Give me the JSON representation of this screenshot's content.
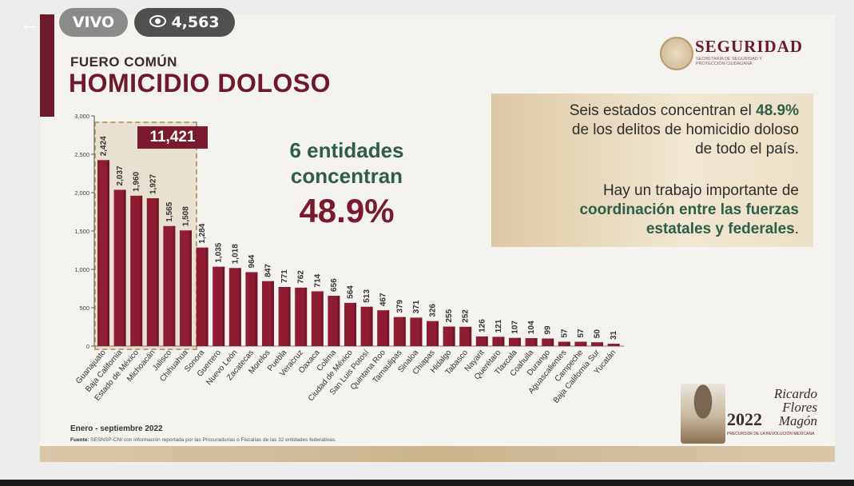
{
  "overlay": {
    "live_label": "VIVO",
    "viewer_count": "4,563"
  },
  "slide": {
    "subtitle": "FUERO COMÚN",
    "title": "HOMICIDIO DOLOSO",
    "logo_name": "SEGURIDAD",
    "logo_sub": "SECRETARÍA DE SEGURIDAD Y PROTECCIÓN CIUDADANA",
    "total_badge": "11,421",
    "center_line1": "6 entidades",
    "center_line2": "concentran",
    "center_pct": "48.9%",
    "info_p1_a": "Seis estados concentran el ",
    "info_p1_b": "48.9%",
    "info_p1_c": "de los delitos de homicidio doloso",
    "info_p1_d": "de todo el país.",
    "info_p2_a": "Hay un trabajo importante de",
    "info_p2_b": "coordinación entre las fuerzas",
    "info_p2_c": "estatales y federales",
    "info_p2_d": ".",
    "period": "Enero - septiembre 2022",
    "source_label": "Fuente:",
    "source_text": "SESNSP-CNI con información reportada por las Procuradurías o Fiscalías de las 32 entidades federativas.",
    "anniv_year": "2022",
    "anniv_name": "Ricardo Flores Magón",
    "anniv_sub": "PRECURSOR DE LA REVOLUCIÓN MEXICANA",
    "colors": {
      "bar": "#8e1d33",
      "accent": "#6e1a2c",
      "green": "#2e5e48"
    }
  },
  "chart_data": {
    "type": "bar",
    "title": "",
    "xlabel": "",
    "ylabel": "",
    "ylim": [
      0,
      3000
    ],
    "yticks": [
      "0",
      "500",
      "1,000",
      "1,500",
      "2,000",
      "2,500",
      "3,000"
    ],
    "grid": false,
    "categories": [
      "Guanajuato",
      "Baja California",
      "Estado de México",
      "Michoacán",
      "Jalisco",
      "Chihuahua",
      "Sonora",
      "Guerrero",
      "Nuevo León",
      "Zacatecas",
      "Morelos",
      "Puebla",
      "Veracruz",
      "Oaxaca",
      "Colima",
      "Ciudad de México",
      "San Luis Potosí",
      "Quintana Roo",
      "Tamaulipas",
      "Sinaloa",
      "Chiapas",
      "Hidalgo",
      "Tabasco",
      "Nayarit",
      "Querétaro",
      "Tlaxcala",
      "Coahuila",
      "Durango",
      "Aguascalientes",
      "Campeche",
      "Baja California Sur",
      "Yucatán"
    ],
    "values": [
      2424,
      2037,
      1960,
      1927,
      1565,
      1508,
      1284,
      1035,
      1018,
      964,
      847,
      771,
      762,
      714,
      656,
      564,
      513,
      467,
      379,
      371,
      326,
      255,
      252,
      126,
      121,
      107,
      104,
      99,
      57,
      57,
      50,
      31
    ],
    "value_labels": [
      "2,424",
      "2,037",
      "1,960",
      "1,927",
      "1,565",
      "1,508",
      "1,284",
      "1,035",
      "1,018",
      "964",
      "847",
      "771",
      "762",
      "714",
      "656",
      "564",
      "513",
      "467",
      "379",
      "371",
      "326",
      "255",
      "252",
      "126",
      "121",
      "107",
      "104",
      "99",
      "57",
      "57",
      "50",
      "31"
    ]
  }
}
